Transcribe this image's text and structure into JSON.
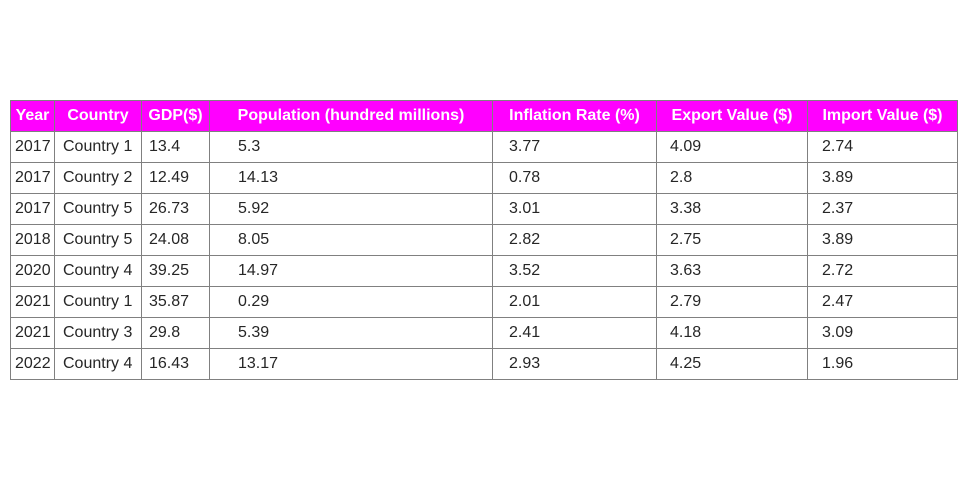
{
  "chart_data": {
    "type": "table",
    "header_color": "#ff00ff",
    "header_text_color": "#ffffff",
    "columns": [
      "Year",
      "Country",
      "GDP($)",
      "Population (hundred millions)",
      "Inflation Rate (%)",
      "Export Value ($)",
      "Import Value ($)"
    ],
    "rows": [
      [
        "2017",
        "Country 1",
        "13.4",
        "5.3",
        "3.77",
        "4.09",
        "2.74"
      ],
      [
        "2017",
        "Country 2",
        "12.49",
        "14.13",
        "0.78",
        "2.8",
        "3.89"
      ],
      [
        "2017",
        "Country 5",
        "26.73",
        "5.92",
        "3.01",
        "3.38",
        "2.37"
      ],
      [
        "2018",
        "Country 5",
        "24.08",
        "8.05",
        "2.82",
        "2.75",
        "3.89"
      ],
      [
        "2020",
        "Country 4",
        "39.25",
        "14.97",
        "3.52",
        "3.63",
        "2.72"
      ],
      [
        "2021",
        "Country 1",
        "35.87",
        "0.29",
        "2.01",
        "2.79",
        "2.47"
      ],
      [
        "2021",
        "Country 3",
        "29.8",
        "5.39",
        "2.41",
        "4.18",
        "3.09"
      ],
      [
        "2022",
        "Country 4",
        "16.43",
        "13.17",
        "2.93",
        "4.25",
        "1.96"
      ]
    ]
  }
}
